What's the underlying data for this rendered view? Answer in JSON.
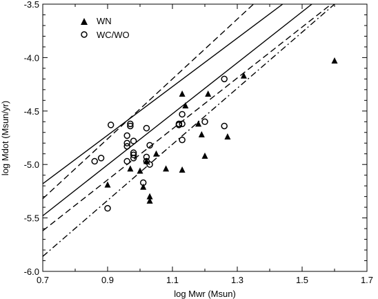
{
  "chart_data": {
    "type": "scatter",
    "title": "",
    "xlabel": "log Mwr (Msun)",
    "ylabel": "log Mdot (Msun/yr)",
    "xlim": [
      0.7,
      1.7
    ],
    "ylim": [
      -6.0,
      -3.5
    ],
    "xticks": [
      "0.7",
      "0.9",
      "1.1",
      "1.3",
      "1.5",
      "1.7"
    ],
    "xminor_step": 0.1,
    "yticks": [
      "-6.0",
      "-5.5",
      "-5.0",
      "-4.5",
      "-4.0",
      "-3.5"
    ],
    "yminor_step": 0.1,
    "grid": false,
    "legend_position": "top-left",
    "series": [
      {
        "name": "WN",
        "marker": "filled-triangle",
        "points": [
          [
            0.9,
            -5.19
          ],
          [
            0.97,
            -5.04
          ],
          [
            1.0,
            -5.06
          ],
          [
            1.01,
            -5.21
          ],
          [
            1.02,
            -4.97
          ],
          [
            1.03,
            -5.3
          ],
          [
            1.03,
            -5.34
          ],
          [
            1.05,
            -4.9
          ],
          [
            1.08,
            -5.04
          ],
          [
            1.13,
            -5.05
          ],
          [
            1.13,
            -4.34
          ],
          [
            1.14,
            -4.45
          ],
          [
            1.18,
            -4.62
          ],
          [
            1.19,
            -4.72
          ],
          [
            1.2,
            -4.92
          ],
          [
            1.21,
            -4.34
          ],
          [
            1.27,
            -4.74
          ],
          [
            1.32,
            -4.17
          ],
          [
            1.6,
            -4.03
          ]
        ]
      },
      {
        "name": "WC/WO",
        "marker": "open-circle",
        "points": [
          [
            0.86,
            -4.97
          ],
          [
            0.88,
            -4.94
          ],
          [
            0.9,
            -5.41
          ],
          [
            0.91,
            -4.63
          ],
          [
            0.96,
            -4.73
          ],
          [
            0.96,
            -4.8
          ],
          [
            0.96,
            -4.83
          ],
          [
            0.96,
            -4.97
          ],
          [
            0.97,
            -4.62
          ],
          [
            0.97,
            -4.64
          ],
          [
            0.98,
            -4.89
          ],
          [
            0.98,
            -4.91
          ],
          [
            0.98,
            -4.94
          ],
          [
            0.98,
            -4.78
          ],
          [
            1.01,
            -5.17
          ],
          [
            1.02,
            -4.66
          ],
          [
            1.02,
            -4.93
          ],
          [
            1.02,
            -4.97
          ],
          [
            1.03,
            -4.82
          ],
          [
            1.03,
            -5.0
          ],
          [
            1.12,
            -4.62
          ],
          [
            1.12,
            -4.63
          ],
          [
            1.13,
            -4.53
          ],
          [
            1.13,
            -4.62
          ],
          [
            1.13,
            -4.77
          ],
          [
            1.2,
            -4.6
          ],
          [
            1.26,
            -4.2
          ],
          [
            1.26,
            -4.64
          ]
        ]
      }
    ],
    "lines": [
      {
        "style": "solid",
        "x": [
          0.7,
          1.44
        ],
        "y": [
          -5.18,
          -3.5
        ]
      },
      {
        "style": "solid",
        "x": [
          0.7,
          1.53
        ],
        "y": [
          -5.48,
          -3.5
        ]
      },
      {
        "style": "dashed",
        "x": [
          0.7,
          1.35
        ],
        "y": [
          -5.32,
          -3.5
        ]
      },
      {
        "style": "dashed",
        "x": [
          0.7,
          1.59
        ],
        "y": [
          -5.62,
          -3.5
        ]
      },
      {
        "style": "dashdot",
        "x": [
          0.7,
          1.6
        ],
        "y": [
          -5.86,
          -3.5
        ]
      }
    ]
  }
}
